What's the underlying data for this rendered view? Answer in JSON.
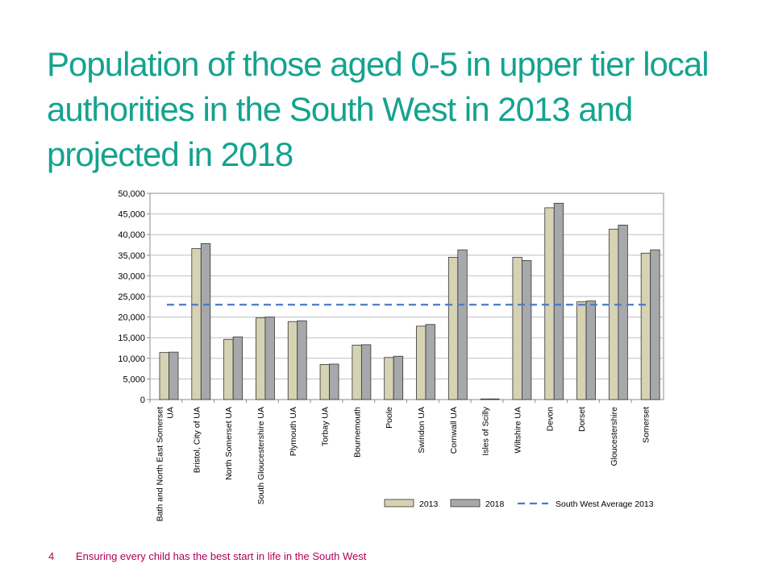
{
  "slide": {
    "title": "Population of those aged 0-5 in upper tier local authorities in the South West in 2013 and projected in 2018",
    "page_number": "4",
    "footer": "Ensuring every child has the best start in life in the South West"
  },
  "chart_data": {
    "type": "bar",
    "title": "",
    "xlabel": "",
    "ylabel": "",
    "ylim": [
      0,
      50000
    ],
    "yticks": [
      0,
      5000,
      10000,
      15000,
      20000,
      25000,
      30000,
      35000,
      40000,
      45000,
      50000
    ],
    "ytick_labels": [
      "0",
      "5,000",
      "10,000",
      "15,000",
      "20,000",
      "25,000",
      "30,000",
      "35,000",
      "40,000",
      "45,000",
      "50,000"
    ],
    "categories": [
      "Bath and North East Somerset UA",
      "Bristol, City of UA",
      "North Somerset UA",
      "South Gloucestershire UA",
      "Plymouth UA",
      "Torbay UA",
      "Bournemouth",
      "Poole",
      "Swindon UA",
      "Cornwall UA",
      "Isles of Scilly",
      "Wiltshire UA",
      "Devon",
      "Dorset",
      "Gloucestershire",
      "Somerset"
    ],
    "series": [
      {
        "name": "2013",
        "color": "#d6d2b4",
        "values": [
          11400,
          36600,
          14600,
          19800,
          18900,
          8500,
          13200,
          10200,
          17800,
          34500,
          150,
          34500,
          46500,
          23700,
          41300,
          35500
        ]
      },
      {
        "name": "2018",
        "color": "#a6a8ab",
        "values": [
          11500,
          37800,
          15200,
          20000,
          19100,
          8600,
          13300,
          10500,
          18200,
          36300,
          160,
          33700,
          47600,
          23900,
          42300,
          36300
        ]
      }
    ],
    "reference_line": {
      "name": "South West Average 2013",
      "value": 23000,
      "color": "#4a7ac8",
      "style": "dashed"
    },
    "grid": true,
    "legend": {
      "position": "bottom-right"
    }
  }
}
